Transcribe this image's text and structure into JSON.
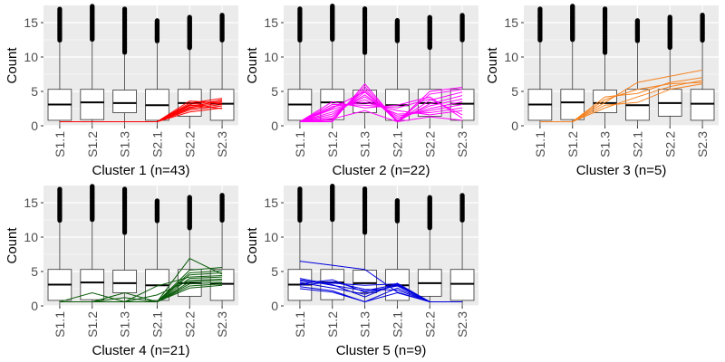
{
  "figure": {
    "y_axis_title": "Count",
    "categories": [
      "S1.1",
      "S1.2",
      "S1.3",
      "S2.1",
      "S2.2",
      "S2.3"
    ],
    "y_ticks": [
      0,
      5,
      10,
      15
    ],
    "ylim": [
      0,
      17.5
    ],
    "background_color": "#ebebeb",
    "grid_color": "#ffffff"
  },
  "chart_data": [
    {
      "type": "box",
      "title": "Cluster 1 (n=43)",
      "line_color": "#ff0000",
      "boxes": [
        {
          "category": "S1.1",
          "q1": 0.8,
          "median": 3.1,
          "q3": 5.3,
          "whisker_low": 0,
          "whisker_high": 12.2,
          "outlier_max": 17.0
        },
        {
          "category": "S1.2",
          "q1": 0.9,
          "median": 3.4,
          "q3": 5.3,
          "whisker_low": 0,
          "whisker_high": 12.3,
          "outlier_max": 17.4
        },
        {
          "category": "S1.3",
          "q1": 1.9,
          "median": 3.3,
          "q3": 5.2,
          "whisker_low": 0,
          "whisker_high": 10.4,
          "outlier_max": 17.0
        },
        {
          "category": "S2.1",
          "q1": 0.8,
          "median": 3.0,
          "q3": 5.3,
          "whisker_low": 0,
          "whisker_high": 12.1,
          "outlier_max": 15.3
        },
        {
          "category": "S2.2",
          "q1": 1.4,
          "median": 3.3,
          "q3": 5.3,
          "whisker_low": 0,
          "whisker_high": 11.1,
          "outlier_max": 15.8
        },
        {
          "category": "S2.3",
          "q1": 0.8,
          "median": 3.2,
          "q3": 5.3,
          "whisker_low": 0,
          "whisker_high": 12.2,
          "outlier_max": 16.1
        }
      ],
      "lines": [
        [
          0.6,
          0.6,
          0.6,
          0.6,
          2.0,
          2.6
        ],
        [
          0.6,
          0.6,
          0.6,
          0.6,
          2.3,
          2.9
        ],
        [
          0.6,
          0.6,
          0.6,
          0.6,
          2.5,
          3.1
        ],
        [
          0.6,
          0.6,
          0.6,
          0.6,
          2.7,
          3.3
        ],
        [
          0.6,
          0.6,
          0.6,
          0.6,
          2.9,
          3.5
        ],
        [
          0.6,
          0.6,
          0.6,
          0.6,
          3.1,
          3.7
        ],
        [
          0.6,
          0.6,
          0.6,
          0.6,
          3.3,
          4.0
        ],
        [
          0.6,
          0.6,
          0.6,
          0.6,
          3.6,
          3.3
        ],
        [
          0.6,
          0.6,
          0.6,
          0.6,
          2.6,
          3.8
        ],
        [
          0.6,
          0.6,
          0.6,
          0.6,
          3.0,
          2.5
        ]
      ]
    },
    {
      "type": "box",
      "title": "Cluster 2 (n=22)",
      "line_color": "#ff00ff",
      "boxes": [
        {
          "category": "S1.1",
          "q1": 0.8,
          "median": 3.1,
          "q3": 5.3,
          "whisker_low": 0,
          "whisker_high": 12.2,
          "outlier_max": 17.0
        },
        {
          "category": "S1.2",
          "q1": 0.9,
          "median": 3.4,
          "q3": 5.3,
          "whisker_low": 0,
          "whisker_high": 12.3,
          "outlier_max": 17.4
        },
        {
          "category": "S1.3",
          "q1": 1.9,
          "median": 3.3,
          "q3": 5.2,
          "whisker_low": 0,
          "whisker_high": 10.4,
          "outlier_max": 17.0
        },
        {
          "category": "S2.1",
          "q1": 0.8,
          "median": 3.0,
          "q3": 5.3,
          "whisker_low": 0,
          "whisker_high": 12.1,
          "outlier_max": 15.3
        },
        {
          "category": "S2.2",
          "q1": 1.4,
          "median": 3.3,
          "q3": 5.3,
          "whisker_low": 0,
          "whisker_high": 11.1,
          "outlier_max": 15.8
        },
        {
          "category": "S2.3",
          "q1": 0.8,
          "median": 3.2,
          "q3": 5.3,
          "whisker_low": 0,
          "whisker_high": 12.2,
          "outlier_max": 16.1
        }
      ],
      "lines": [
        [
          0.6,
          0.6,
          6.1,
          0.6,
          4.6,
          5.3
        ],
        [
          0.6,
          0.8,
          5.7,
          0.6,
          3.7,
          4.9
        ],
        [
          0.6,
          1.1,
          5.3,
          0.6,
          3.2,
          4.4
        ],
        [
          0.6,
          1.4,
          4.9,
          0.8,
          2.9,
          3.9
        ],
        [
          0.6,
          1.7,
          4.5,
          1.1,
          2.5,
          3.5
        ],
        [
          0.6,
          2.0,
          4.2,
          1.4,
          2.2,
          3.1
        ],
        [
          0.6,
          2.4,
          3.8,
          1.7,
          1.9,
          2.6
        ],
        [
          0.6,
          2.8,
          3.4,
          2.2,
          1.6,
          2.2
        ],
        [
          0.6,
          3.1,
          3.0,
          2.6,
          3.9,
          1.6
        ],
        [
          0.6,
          3.5,
          2.6,
          3.0,
          4.2,
          1.1
        ],
        [
          0.6,
          1.0,
          2.2,
          0.6,
          1.3,
          0.8
        ],
        [
          0.6,
          2.6,
          5.0,
          0.6,
          5.0,
          5.6
        ]
      ]
    },
    {
      "type": "box",
      "title": "Cluster 3 (n=5)",
      "line_color": "#f5821f",
      "boxes": [
        {
          "category": "S1.1",
          "q1": 0.8,
          "median": 3.1,
          "q3": 5.3,
          "whisker_low": 0,
          "whisker_high": 12.2,
          "outlier_max": 17.0
        },
        {
          "category": "S1.2",
          "q1": 0.9,
          "median": 3.4,
          "q3": 5.3,
          "whisker_low": 0,
          "whisker_high": 12.3,
          "outlier_max": 17.4
        },
        {
          "category": "S1.3",
          "q1": 1.9,
          "median": 3.3,
          "q3": 5.2,
          "whisker_low": 0,
          "whisker_high": 10.4,
          "outlier_max": 17.0
        },
        {
          "category": "S2.1",
          "q1": 0.8,
          "median": 3.0,
          "q3": 5.3,
          "whisker_low": 0,
          "whisker_high": 12.1,
          "outlier_max": 15.3
        },
        {
          "category": "S2.2",
          "q1": 1.4,
          "median": 3.3,
          "q3": 5.3,
          "whisker_low": 0,
          "whisker_high": 11.1,
          "outlier_max": 15.8
        },
        {
          "category": "S2.3",
          "q1": 0.8,
          "median": 3.2,
          "q3": 5.3,
          "whisker_low": 0,
          "whisker_high": 12.2,
          "outlier_max": 16.1
        }
      ],
      "lines": [
        [
          0.6,
          0.6,
          4.2,
          4.7,
          6.3,
          7.0
        ],
        [
          0.6,
          0.6,
          3.4,
          6.3,
          7.2,
          8.1
        ],
        [
          0.6,
          0.6,
          2.6,
          4.2,
          5.7,
          6.6
        ],
        [
          0.6,
          0.6,
          3.0,
          3.4,
          5.3,
          6.1
        ],
        [
          0.6,
          0.6,
          3.8,
          5.3,
          6.1,
          6.3
        ]
      ]
    },
    {
      "type": "box",
      "title": "Cluster 4 (n=21)",
      "line_color": "#0a5c0a",
      "boxes": [
        {
          "category": "S1.1",
          "q1": 0.8,
          "median": 3.1,
          "q3": 5.3,
          "whisker_low": 0,
          "whisker_high": 12.2,
          "outlier_max": 17.0
        },
        {
          "category": "S1.2",
          "q1": 0.9,
          "median": 3.4,
          "q3": 5.3,
          "whisker_low": 0,
          "whisker_high": 12.3,
          "outlier_max": 17.4
        },
        {
          "category": "S1.3",
          "q1": 1.9,
          "median": 3.3,
          "q3": 5.2,
          "whisker_low": 0,
          "whisker_high": 10.4,
          "outlier_max": 17.0
        },
        {
          "category": "S2.1",
          "q1": 0.8,
          "median": 3.0,
          "q3": 5.3,
          "whisker_low": 0,
          "whisker_high": 12.1,
          "outlier_max": 15.3
        },
        {
          "category": "S2.2",
          "q1": 1.4,
          "median": 3.3,
          "q3": 5.3,
          "whisker_low": 0,
          "whisker_high": 11.1,
          "outlier_max": 15.8
        },
        {
          "category": "S2.3",
          "q1": 0.8,
          "median": 3.2,
          "q3": 5.3,
          "whisker_low": 0,
          "whisker_high": 12.2,
          "outlier_max": 16.1
        }
      ],
      "lines": [
        [
          0.6,
          1.9,
          0.6,
          0.6,
          6.9,
          4.6
        ],
        [
          0.6,
          0.6,
          1.9,
          0.6,
          5.2,
          5.6
        ],
        [
          0.6,
          0.6,
          0.6,
          0.6,
          4.5,
          4.8
        ],
        [
          0.6,
          0.6,
          0.6,
          2.9,
          4.2,
          4.4
        ],
        [
          0.6,
          0.6,
          1.2,
          0.6,
          4.0,
          4.2
        ],
        [
          0.6,
          0.6,
          0.6,
          1.6,
          3.7,
          3.9
        ],
        [
          0.6,
          0.6,
          0.6,
          0.6,
          3.5,
          3.7
        ],
        [
          0.6,
          0.6,
          0.6,
          0.6,
          3.2,
          3.4
        ],
        [
          0.6,
          0.6,
          0.6,
          0.6,
          2.9,
          3.2
        ],
        [
          0.6,
          0.6,
          0.6,
          0.6,
          4.8,
          5.1
        ],
        [
          0.6,
          0.6,
          0.6,
          0.6,
          2.6,
          3.0
        ]
      ]
    },
    {
      "type": "box",
      "title": "Cluster 5 (n=9)",
      "line_color": "#0000dd",
      "boxes": [
        {
          "category": "S1.1",
          "q1": 0.8,
          "median": 3.1,
          "q3": 5.3,
          "whisker_low": 0,
          "whisker_high": 12.2,
          "outlier_max": 17.0
        },
        {
          "category": "S1.2",
          "q1": 0.9,
          "median": 3.4,
          "q3": 5.3,
          "whisker_low": 0,
          "whisker_high": 12.3,
          "outlier_max": 17.4
        },
        {
          "category": "S1.3",
          "q1": 1.9,
          "median": 3.3,
          "q3": 5.2,
          "whisker_low": 0,
          "whisker_high": 10.4,
          "outlier_max": 17.0
        },
        {
          "category": "S2.1",
          "q1": 0.8,
          "median": 3.0,
          "q3": 5.3,
          "whisker_low": 0,
          "whisker_high": 12.1,
          "outlier_max": 15.3
        },
        {
          "category": "S2.2",
          "q1": 1.4,
          "median": 3.3,
          "q3": 5.3,
          "whisker_low": 0,
          "whisker_high": 11.1,
          "outlier_max": 15.8
        },
        {
          "category": "S2.3",
          "q1": 0.8,
          "median": 3.2,
          "q3": 5.3,
          "whisker_low": 0,
          "whisker_high": 12.2,
          "outlier_max": 16.1
        }
      ],
      "lines": [
        [
          6.5,
          5.9,
          5.3,
          2.0,
          0.6,
          0.6
        ],
        [
          3.6,
          3.3,
          3.0,
          3.2,
          0.6,
          0.6
        ],
        [
          3.2,
          3.8,
          2.0,
          2.9,
          0.6,
          0.6
        ],
        [
          2.8,
          2.2,
          0.6,
          2.6,
          0.6,
          0.6
        ],
        [
          4.0,
          3.1,
          1.3,
          3.3,
          0.6,
          0.6
        ],
        [
          3.4,
          2.6,
          1.7,
          3.0,
          0.6,
          0.6
        ],
        [
          3.0,
          3.5,
          2.4,
          2.3,
          0.6,
          0.6
        ],
        [
          2.5,
          2.0,
          0.6,
          1.9,
          0.6,
          0.6
        ],
        [
          3.8,
          3.0,
          2.2,
          3.1,
          0.6,
          0.6
        ]
      ]
    }
  ]
}
